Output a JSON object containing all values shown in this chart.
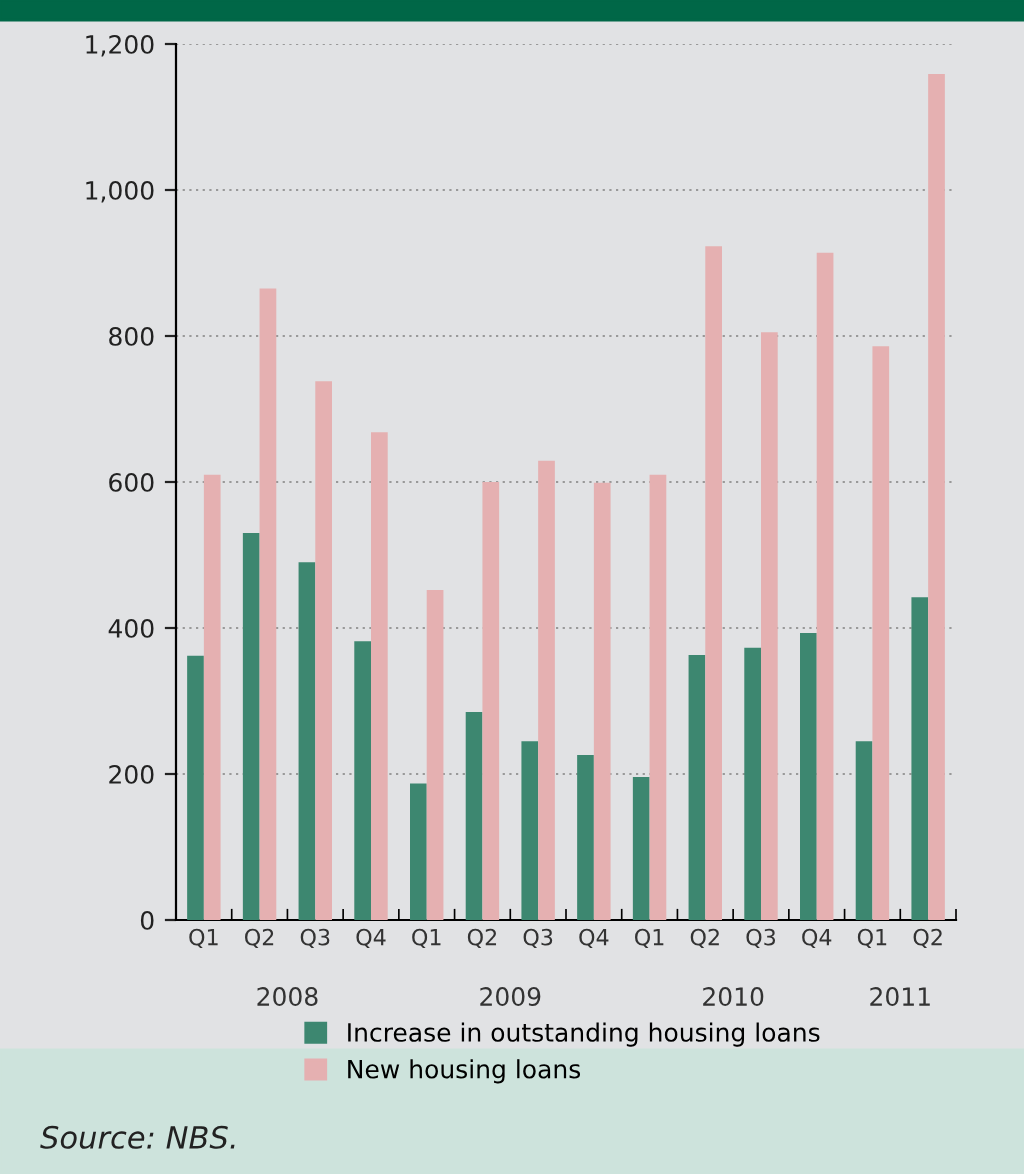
{
  "chart_data": {
    "type": "bar",
    "categories": [
      "Q1",
      "Q2",
      "Q3",
      "Q4",
      "Q1",
      "Q2",
      "Q3",
      "Q4",
      "Q1",
      "Q2",
      "Q3",
      "Q4",
      "Q1",
      "Q2"
    ],
    "series": [
      {
        "name": "Increase in outstanding housing loans",
        "color": "#3d8770",
        "values": [
          362,
          530,
          490,
          382,
          187,
          285,
          245,
          226,
          196,
          363,
          373,
          393,
          245,
          442
        ]
      },
      {
        "name": "New housing loans",
        "color": "#e5b0b1",
        "values": [
          610,
          865,
          738,
          668,
          452,
          600,
          629,
          599,
          610,
          923,
          805,
          914,
          786,
          1159
        ]
      }
    ],
    "ylim": [
      0,
      1200
    ],
    "yticks": [
      0,
      {
        "value": 200,
        "label": "200"
      },
      {
        "value": 400,
        "label": "400"
      },
      {
        "value": 600,
        "label": "600"
      },
      {
        "value": 800,
        "label": "800"
      },
      {
        "value": 1000,
        "label": "1,000"
      },
      {
        "value": 1200,
        "label": "1,200"
      }
    ],
    "grid": "y",
    "legend": "bottom",
    "annotations": [
      "2008",
      "2009",
      "2010",
      "2011",
      "Source: NBS."
    ]
  }
}
